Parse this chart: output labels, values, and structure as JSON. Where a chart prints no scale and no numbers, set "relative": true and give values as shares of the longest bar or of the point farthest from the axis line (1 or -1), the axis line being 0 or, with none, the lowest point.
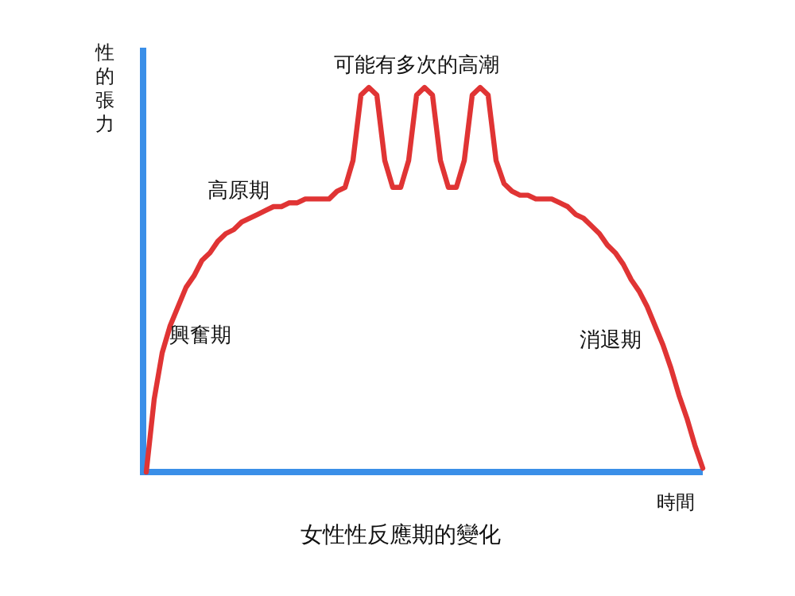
{
  "chart_data": {
    "type": "line",
    "relative": true,
    "title": "女性性反應期的變化",
    "xlabel": "時間",
    "ylabel": "性的張力",
    "annotations": [
      "可能有多次的高潮",
      "高原期",
      "興奮期",
      "消退期"
    ],
    "categories": [
      null,
      null,
      null,
      null,
      null,
      null,
      null,
      null,
      null,
      null,
      null,
      null,
      null,
      null,
      null,
      null,
      null,
      null,
      null,
      null,
      null,
      null,
      null,
      null,
      null,
      null,
      null,
      null,
      null,
      null,
      null,
      null,
      null,
      null,
      null,
      null,
      null,
      null,
      null,
      null,
      null,
      null,
      null,
      null,
      null,
      null,
      null,
      null,
      null,
      null,
      null,
      null,
      null,
      null,
      null,
      null,
      null,
      null,
      null,
      null,
      null,
      null,
      null,
      null,
      null,
      null,
      null,
      null,
      null,
      null,
      null
    ],
    "series": [
      {
        "color": "#e03434",
        "values": [
          0,
          0.19,
          0.31,
          0.38,
          0.43,
          0.48,
          0.51,
          0.55,
          0.57,
          0.6,
          0.62,
          0.63,
          0.65,
          0.66,
          0.67,
          0.68,
          0.69,
          0.69,
          0.7,
          0.7,
          0.71,
          0.71,
          0.71,
          0.71,
          0.73,
          0.74,
          0.81,
          0.98,
          1,
          0.98,
          0.81,
          0.74,
          0.74,
          0.81,
          0.98,
          1,
          0.98,
          0.81,
          0.74,
          0.74,
          0.81,
          0.98,
          1,
          0.98,
          0.81,
          0.75,
          0.73,
          0.72,
          0.72,
          0.71,
          0.71,
          0.71,
          0.7,
          0.69,
          0.67,
          0.66,
          0.64,
          0.62,
          0.59,
          0.57,
          0.54,
          0.5,
          0.47,
          0.43,
          0.38,
          0.33,
          0.27,
          0.2,
          0.14,
          0.07,
          0.01
        ]
      }
    ]
  }
}
